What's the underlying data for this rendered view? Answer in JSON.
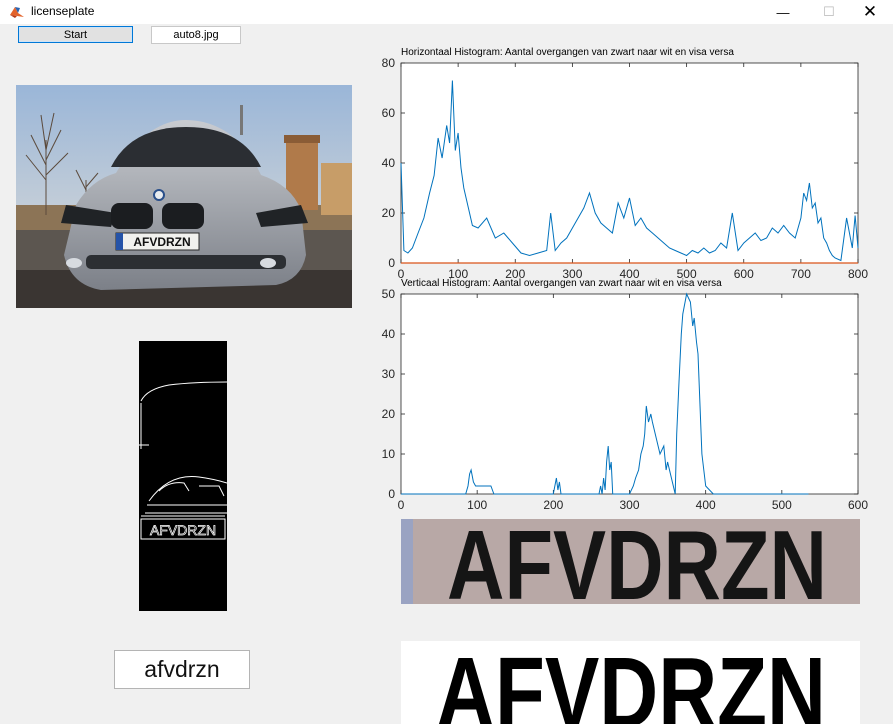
{
  "window": {
    "title": "licenseplate",
    "minimize": "—",
    "maximize": "☐",
    "close": "✕"
  },
  "controls": {
    "start_label": "Start",
    "filename": "auto8.jpg"
  },
  "result": {
    "text": "afvdrzn"
  },
  "plate": {
    "text": "AFVDRZN"
  },
  "images": {
    "photo": "car-photo",
    "edges": "edge-detection-image",
    "plate_crop": "plate-crop-image",
    "plate_binary": "binarized-plate-image"
  },
  "colors": {
    "line": "#0072bd",
    "baseline": "#d95319",
    "axis": "#262626"
  },
  "chart_data": [
    {
      "type": "line",
      "title": "Horizontaal Histogram: Aantal overgangen van zwart naar wit en visa versa",
      "xlim": [
        0,
        800
      ],
      "ylim": [
        0,
        80
      ],
      "xticks": [
        0,
        100,
        200,
        300,
        400,
        500,
        600,
        700,
        800
      ],
      "yticks": [
        0,
        20,
        40,
        60,
        80
      ],
      "series": [
        {
          "x": [
            0,
            5,
            12,
            20,
            30,
            40,
            50,
            58,
            65,
            72,
            80,
            85,
            90,
            95,
            100,
            105,
            110,
            118,
            125,
            135,
            150,
            165,
            180,
            195,
            210,
            225,
            240,
            255,
            262,
            270,
            280,
            290,
            300,
            310,
            320,
            330,
            340,
            350,
            360,
            370,
            380,
            390,
            400,
            410,
            420,
            430,
            440,
            450,
            460,
            470,
            480,
            490,
            500,
            510,
            520,
            530,
            540,
            550,
            560,
            570,
            580,
            590,
            600,
            610,
            620,
            630,
            640,
            650,
            660,
            670,
            680,
            690,
            700,
            705,
            710,
            715,
            720,
            725,
            730,
            735,
            740,
            745,
            750,
            755,
            760,
            770,
            780,
            790,
            795,
            800
          ],
          "y": [
            40,
            5,
            4,
            6,
            12,
            18,
            28,
            35,
            50,
            42,
            55,
            48,
            73,
            45,
            52,
            38,
            30,
            22,
            15,
            14,
            18,
            10,
            12,
            8,
            4,
            3,
            4,
            5,
            20,
            5,
            8,
            10,
            14,
            18,
            22,
            28,
            20,
            16,
            14,
            12,
            24,
            18,
            26,
            15,
            18,
            14,
            12,
            10,
            8,
            6,
            5,
            4,
            3,
            5,
            4,
            6,
            4,
            5,
            8,
            6,
            20,
            5,
            8,
            10,
            12,
            9,
            10,
            14,
            12,
            15,
            12,
            10,
            18,
            28,
            25,
            32,
            22,
            24,
            16,
            18,
            10,
            8,
            5,
            3,
            2,
            1,
            18,
            6,
            19,
            6
          ]
        },
        {
          "x": [
            0,
            800
          ],
          "y": [
            0,
            0
          ]
        }
      ]
    },
    {
      "type": "line",
      "title": "Verticaal Histogram: Aantal overgangen van zwart naar wit en visa versa",
      "xlim": [
        0,
        600
      ],
      "ylim": [
        0,
        50
      ],
      "xticks": [
        0,
        100,
        200,
        300,
        400,
        500,
        600
      ],
      "yticks": [
        0,
        10,
        20,
        30,
        40,
        50
      ],
      "series": [
        {
          "x": [
            0,
            80,
            85,
            88,
            90,
            92,
            95,
            98,
            100,
            110,
            118,
            122,
            125,
            200,
            204,
            206,
            208,
            210,
            260,
            262,
            264,
            266,
            268,
            270,
            272,
            274,
            276,
            278,
            285,
            300,
            305,
            308,
            312,
            315,
            318,
            320,
            322,
            325,
            328,
            330,
            335,
            340,
            345,
            348,
            350,
            355,
            360,
            362,
            365,
            368,
            370,
            375,
            380,
            383,
            385,
            388,
            390,
            395,
            400,
            410,
            535
          ],
          "y": [
            0,
            0,
            0,
            2,
            5,
            6,
            3,
            2,
            2,
            2,
            2,
            0,
            0,
            0,
            4,
            1,
            3,
            0,
            0,
            2,
            0,
            4,
            1,
            8,
            12,
            6,
            8,
            0,
            0,
            0,
            2,
            4,
            6,
            10,
            12,
            15,
            22,
            18,
            20,
            18,
            14,
            10,
            12,
            6,
            8,
            4,
            0,
            15,
            28,
            40,
            45,
            50,
            48,
            42,
            44,
            38,
            35,
            10,
            2,
            0,
            0
          ]
        }
      ]
    }
  ]
}
